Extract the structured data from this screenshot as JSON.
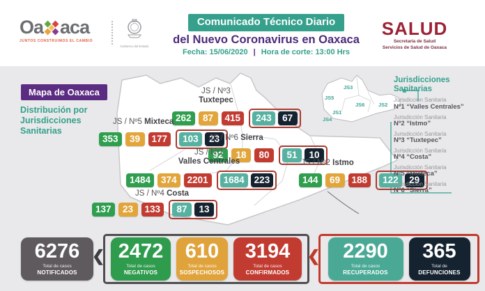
{
  "header": {
    "oaxaca_logo": {
      "word_start": "Oa",
      "word_end": "aca",
      "tagline": "JUNTOS CONSTRUIMOS EL CAMBIO",
      "seal_caption": "Gobierno del Estado"
    },
    "title_badge": "Comunicado Técnico Diario",
    "subtitle": "del Nuevo Coronavirus en Oaxaca",
    "date_label": "Fecha:",
    "date_value": "15/06/2020",
    "separator": "|",
    "cutoff_label": "Hora de corte:",
    "cutoff_value": "13:00 Hrs",
    "salud_logo": {
      "title": "SALUD",
      "line1": "Secretaría de Salud",
      "line2": "Servicios de Salud de Oaxaca"
    }
  },
  "map_panel": {
    "title": "Mapa de Oaxaca",
    "subtitle": "Distribución por Jurisdicciones Sanitarias",
    "regions": [
      {
        "id": "tuxtepec",
        "label_prefix": "JS / Nº3",
        "label_name": "Tuxtepec",
        "negativos": "262",
        "sospechosos": "87",
        "confirmados": "415",
        "recuperados": "243",
        "defunciones": "67"
      },
      {
        "id": "mixteca",
        "label_prefix": "JS / Nº5",
        "label_name": "Mixteca",
        "negativos": "353",
        "sospechosos": "39",
        "confirmados": "177",
        "recuperados": "103",
        "defunciones": "23"
      },
      {
        "id": "sierra",
        "label_prefix": "JS / Nº6",
        "label_name": "Sierra",
        "negativos": "92",
        "sospechosos": "18",
        "confirmados": "80",
        "recuperados": "51",
        "defunciones": "10"
      },
      {
        "id": "valles_centrales",
        "label_prefix": "JS / Nº1",
        "label_name": "Valles Centrales",
        "negativos": "1484",
        "sospechosos": "374",
        "confirmados": "2201",
        "recuperados": "1684",
        "defunciones": "223"
      },
      {
        "id": "istmo",
        "label_prefix": "JS / Nº2",
        "label_name": "Istmo",
        "negativos": "144",
        "sospechosos": "69",
        "confirmados": "188",
        "recuperados": "122",
        "defunciones": "29"
      },
      {
        "id": "costa",
        "label_prefix": "JS / Nº4",
        "label_name": "Costa",
        "negativos": "137",
        "sospechosos": "23",
        "confirmados": "133",
        "recuperados": "87",
        "defunciones": "13"
      }
    ],
    "minimap_labels": [
      "JS5",
      "JS3",
      "JS6",
      "JS2",
      "JS1",
      "JS4"
    ]
  },
  "legend": {
    "title": "Jurisdicciones Sanitarias",
    "items": [
      {
        "line1": "Jurisdicción Sanitaria",
        "line2": "Nº1 “Valles Centrales”"
      },
      {
        "line1": "Jurisdicción Sanitaria",
        "line2": "Nº2 “Istmo”"
      },
      {
        "line1": "Jurisdicción Sanitaria",
        "line2": "Nº3 “Tuxtepec”"
      },
      {
        "line1": "Jurisdicción Sanitaria",
        "line2": "Nº4 “Costa”"
      },
      {
        "line1": "Jurisdicción Sanitaria",
        "line2": "Nº5 “Mixteca”"
      },
      {
        "line1": "Jurisdicción Sanitaria",
        "line2": "Nº6 “Sierra”"
      }
    ]
  },
  "totals": [
    {
      "id": "notificados",
      "value": "6276",
      "label_line1": "Total de casos",
      "label_line2": "NOTIFICADOS",
      "color": "#5e5a5d"
    },
    {
      "id": "negativos",
      "value": "2472",
      "label_line1": "Total de casos",
      "label_line2": "NEGATIVOS",
      "color": "#2e9b4d"
    },
    {
      "id": "sospechosos",
      "value": "610",
      "label_line1": "Total de casos",
      "label_line2": "SOSPECHOSOS",
      "color": "#e0a33b"
    },
    {
      "id": "confirmados",
      "value": "3194",
      "label_line1": "Total de casos",
      "label_line2": "CONFIRMADOS",
      "color": "#c23b31"
    },
    {
      "id": "recuperados",
      "value": "2290",
      "label_line1": "Total de casos",
      "label_line2": "RECUPERADOS",
      "color": "#4aa995"
    },
    {
      "id": "defunciones",
      "value": "365",
      "label_line1": "Total de",
      "label_line2": "DEFUNCIONES",
      "color": "#15222f"
    }
  ],
  "icons": {
    "oaxaca_mark": "x-diamonds",
    "state_seal": "crest",
    "group_pointer": "❮"
  },
  "colors": {
    "teal": "#35a08c",
    "purple": "#4b2a7b",
    "green": "#2e9b4d",
    "yellow": "#e0a33b",
    "red": "#c23b31",
    "navy": "#15222f",
    "gray": "#5e5a5d",
    "salud_red": "#9d2235",
    "outline_red": "#b03a30",
    "outline_dark": "#4d4d4f",
    "background": "#e9e9eb"
  }
}
